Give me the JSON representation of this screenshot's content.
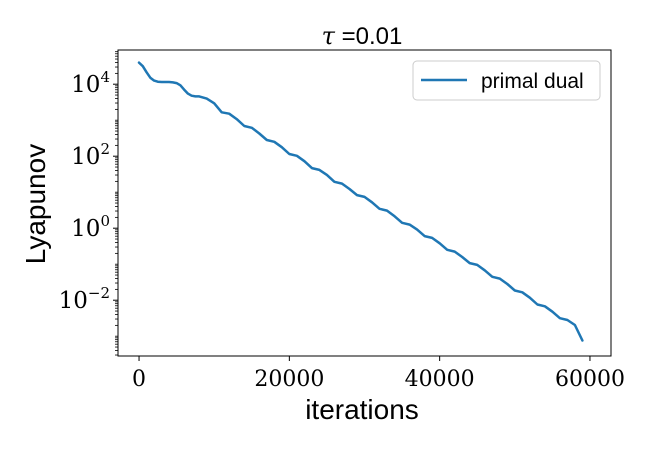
{
  "chart_data": {
    "type": "line",
    "title": {
      "symbol": "τ",
      "text": " =0.01"
    },
    "xlabel": "iterations",
    "ylabel": "Lyapunov",
    "y_scale": "log",
    "xlim": [
      -2800,
      62800
    ],
    "ylim_exp": [
      -3.55,
      4.95
    ],
    "x_ticks": [
      {
        "value": 0,
        "label": "0"
      },
      {
        "value": 20000,
        "label": "20000"
      },
      {
        "value": 40000,
        "label": "40000"
      },
      {
        "value": 60000,
        "label": "60000"
      }
    ],
    "y_ticks": [
      {
        "exp": 4,
        "base": "10",
        "power": "4"
      },
      {
        "exp": 2,
        "base": "10",
        "power": "2"
      },
      {
        "exp": 0,
        "base": "10",
        "power": "0"
      },
      {
        "exp": -2,
        "base": "10",
        "power": "−2"
      }
    ],
    "legend": {
      "position": "top-right",
      "entries": [
        "primal dual"
      ]
    },
    "grid": false,
    "colors": {
      "series": "#1f77b4",
      "axes": "#000000"
    },
    "series": [
      {
        "name": "primal dual",
        "x": [
          0,
          500,
          1000,
          1500,
          2000,
          2500,
          3000,
          3500,
          4000,
          4500,
          5000,
          5500,
          6000,
          6500,
          7000,
          7500,
          8000,
          9000,
          10000,
          11000,
          12000,
          13000,
          14000,
          15000,
          16000,
          17000,
          18000,
          19000,
          20000,
          21000,
          22000,
          23000,
          24000,
          25000,
          26000,
          27000,
          28000,
          29000,
          30000,
          31000,
          32000,
          33000,
          34000,
          35000,
          36000,
          37000,
          38000,
          39000,
          40000,
          41000,
          42000,
          43000,
          44000,
          45000,
          46000,
          47000,
          48000,
          49000,
          50000,
          51000,
          52000,
          53000,
          54000,
          55000,
          56000,
          57000,
          58000,
          59000
        ],
        "y_exp": [
          4.6,
          4.5,
          4.33,
          4.18,
          4.1,
          4.07,
          4.06,
          4.06,
          4.06,
          4.05,
          4.03,
          3.97,
          3.85,
          3.74,
          3.68,
          3.66,
          3.66,
          3.6,
          3.47,
          3.22,
          3.18,
          3.03,
          2.84,
          2.79,
          2.63,
          2.45,
          2.4,
          2.25,
          2.06,
          2.01,
          1.86,
          1.67,
          1.62,
          1.48,
          1.29,
          1.24,
          1.09,
          0.92,
          0.87,
          0.72,
          0.54,
          0.49,
          0.33,
          0.15,
          0.1,
          -0.04,
          -0.22,
          -0.27,
          -0.42,
          -0.6,
          -0.65,
          -0.8,
          -0.97,
          -1.02,
          -1.17,
          -1.35,
          -1.4,
          -1.55,
          -1.73,
          -1.78,
          -1.93,
          -2.12,
          -2.17,
          -2.32,
          -2.5,
          -2.55,
          -2.69,
          -3.12
        ]
      }
    ]
  }
}
